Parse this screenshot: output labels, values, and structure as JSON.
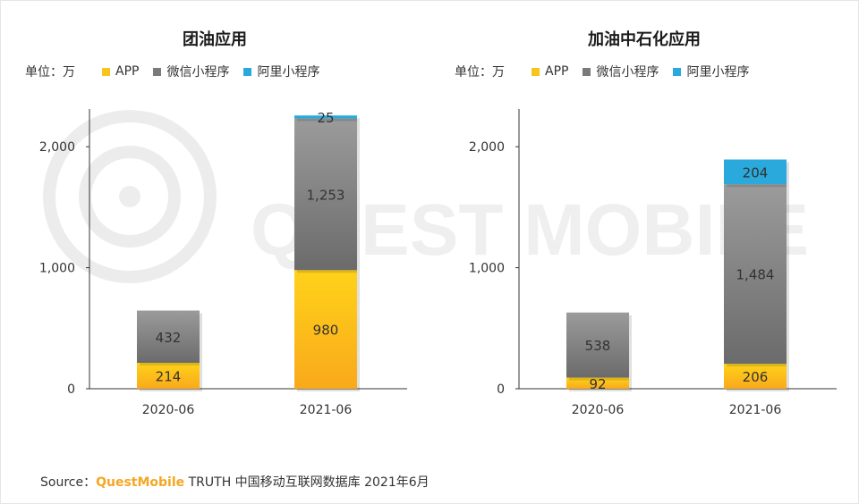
{
  "colors": {
    "app": "#f7c51b",
    "wechat": "#7a7a7a",
    "alipay": "#29a9dc",
    "brand": "#f5a623"
  },
  "legend": {
    "unit": "单位：万",
    "app": "APP",
    "wechat": "微信小程序",
    "alipay": "阿里小程序"
  },
  "watermark": "QUEST MOBILE",
  "source": {
    "prefix": "Source：",
    "brand": "QuestMobile",
    "rest": "TRUTH 中国移动互联网数据库 2021年6月"
  },
  "chart_data": [
    {
      "type": "bar",
      "stacked": true,
      "title": "团油应用",
      "categories": [
        "2020-06",
        "2021-06"
      ],
      "series": [
        {
          "name": "APP",
          "values": [
            214,
            980
          ]
        },
        {
          "name": "微信小程序",
          "values": [
            432,
            1253
          ]
        },
        {
          "name": "阿里小程序",
          "values": [
            0,
            25
          ]
        }
      ],
      "value_labels": [
        [
          "214",
          "432",
          ""
        ],
        [
          "980",
          "1,253",
          "25"
        ]
      ],
      "ylim": [
        0,
        2400
      ],
      "yticks": [
        0,
        1000,
        2000
      ],
      "ytick_labels": [
        "0",
        "1,000",
        "2,000"
      ],
      "grid": false,
      "legend_position": "top-left"
    },
    {
      "type": "bar",
      "stacked": true,
      "title": "加油中石化应用",
      "categories": [
        "2020-06",
        "2021-06"
      ],
      "series": [
        {
          "name": "APP",
          "values": [
            92,
            206
          ]
        },
        {
          "name": "微信小程序",
          "values": [
            538,
            1484
          ]
        },
        {
          "name": "阿里小程序",
          "values": [
            0,
            204
          ]
        }
      ],
      "value_labels": [
        [
          "92",
          "538",
          ""
        ],
        [
          "206",
          "1,484",
          "204"
        ]
      ],
      "ylim": [
        0,
        2400
      ],
      "yticks": [
        0,
        1000,
        2000
      ],
      "ytick_labels": [
        "0",
        "1,000",
        "2,000"
      ],
      "grid": false,
      "legend_position": "top-left"
    }
  ]
}
